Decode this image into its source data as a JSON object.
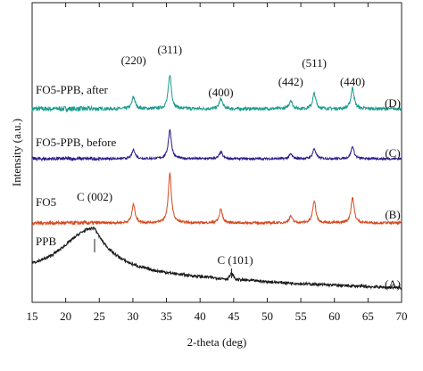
{
  "chart_data": {
    "type": "line",
    "xlabel": "2-theta (deg)",
    "ylabel": "Intensity (a.u.)",
    "xlim": [
      15,
      70
    ],
    "x_ticks": [
      "15",
      "20",
      "25",
      "30",
      "35",
      "40",
      "45",
      "50",
      "55",
      "60",
      "65",
      "70"
    ],
    "y_ticks": [],
    "grid": false,
    "series": [
      {
        "name": "FO5-PPB, after",
        "tag": "(D)",
        "color": "#1a9a8e",
        "peaks": [
          [
            30.1,
            0.35
          ],
          [
            35.5,
            1.0
          ],
          [
            43.1,
            0.3
          ],
          [
            53.5,
            0.25
          ],
          [
            57.0,
            0.45
          ],
          [
            62.7,
            0.62
          ]
        ],
        "noise": 0.09
      },
      {
        "name": "FO5-PPB, before",
        "tag": "(C)",
        "color": "#2d1a8a",
        "peaks": [
          [
            30.1,
            0.3
          ],
          [
            35.5,
            0.95
          ],
          [
            43.1,
            0.22
          ],
          [
            53.5,
            0.15
          ],
          [
            57.0,
            0.33
          ],
          [
            62.7,
            0.4
          ]
        ],
        "noise": 0.07
      },
      {
        "name": "FO5",
        "tag": "(B)",
        "color": "#d44a1f",
        "peaks": [
          [
            30.1,
            0.55
          ],
          [
            35.5,
            1.45
          ],
          [
            43.1,
            0.4
          ],
          [
            53.5,
            0.2
          ],
          [
            57.0,
            0.65
          ],
          [
            62.7,
            0.75
          ]
        ],
        "noise": 0.07
      },
      {
        "name": "PPB",
        "tag": "(A)",
        "color": "#1a1a1a",
        "broad_hump": {
          "center": 24.3,
          "height": 1.35
        },
        "noise": 0.06
      }
    ],
    "annotations": [
      {
        "text": "(220)",
        "x": 30.1
      },
      {
        "text": "(311)",
        "x": 35.5
      },
      {
        "text": "(400)",
        "x": 43.1
      },
      {
        "text": "(442)",
        "x": 53.5
      },
      {
        "text": "(511)",
        "x": 57.0
      },
      {
        "text": "(440)",
        "x": 62.7
      },
      {
        "text": "C (002)",
        "x": 24.3
      },
      {
        "text": "C (101)",
        "x": 44.7
      }
    ]
  }
}
